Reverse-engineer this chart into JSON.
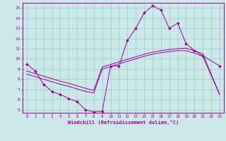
{
  "xlabel": "Windchill (Refroidissement éolien,°C)",
  "background_color": "#cce8e8",
  "grid_color": "#99cccc",
  "line_color": "#990099",
  "xlim": [
    -0.5,
    23.5
  ],
  "ylim": [
    4.7,
    15.5
  ],
  "yticks": [
    5,
    6,
    7,
    8,
    9,
    10,
    11,
    12,
    13,
    14,
    15
  ],
  "xticks": [
    0,
    1,
    2,
    3,
    4,
    5,
    6,
    7,
    8,
    9,
    10,
    11,
    12,
    13,
    14,
    15,
    16,
    17,
    18,
    19,
    20,
    21,
    22,
    23
  ],
  "s1x": [
    0,
    1,
    2,
    3,
    4,
    5,
    6,
    7,
    8,
    9,
    10,
    11,
    12,
    13,
    14,
    15,
    16,
    17,
    18,
    19,
    20,
    21,
    23
  ],
  "s1y": [
    9.5,
    8.8,
    7.5,
    6.8,
    6.5,
    6.1,
    5.8,
    5.0,
    4.8,
    4.85,
    9.3,
    9.3,
    11.8,
    13.0,
    14.5,
    15.2,
    14.8,
    13.0,
    13.5,
    11.5,
    10.8,
    10.3,
    9.3
  ],
  "s2x": [
    0,
    1,
    2,
    3,
    4,
    5,
    6,
    7,
    8,
    9,
    10,
    11,
    12,
    13,
    14,
    15,
    16,
    17,
    18,
    19,
    20,
    21,
    23
  ],
  "s2y": [
    8.8,
    8.55,
    8.3,
    8.05,
    7.8,
    7.6,
    7.35,
    7.1,
    6.9,
    9.2,
    9.45,
    9.7,
    9.95,
    10.2,
    10.45,
    10.65,
    10.8,
    10.9,
    11.0,
    11.05,
    10.8,
    10.5,
    6.5
  ],
  "s3x": [
    0,
    1,
    2,
    3,
    4,
    5,
    6,
    7,
    8,
    9,
    10,
    11,
    12,
    13,
    14,
    15,
    16,
    17,
    18,
    19,
    20,
    21,
    23
  ],
  "s3y": [
    8.5,
    8.25,
    8.0,
    7.75,
    7.5,
    7.3,
    7.05,
    6.8,
    6.65,
    9.0,
    9.25,
    9.5,
    9.75,
    10.0,
    10.25,
    10.45,
    10.6,
    10.7,
    10.8,
    10.8,
    10.55,
    10.25,
    6.5
  ]
}
